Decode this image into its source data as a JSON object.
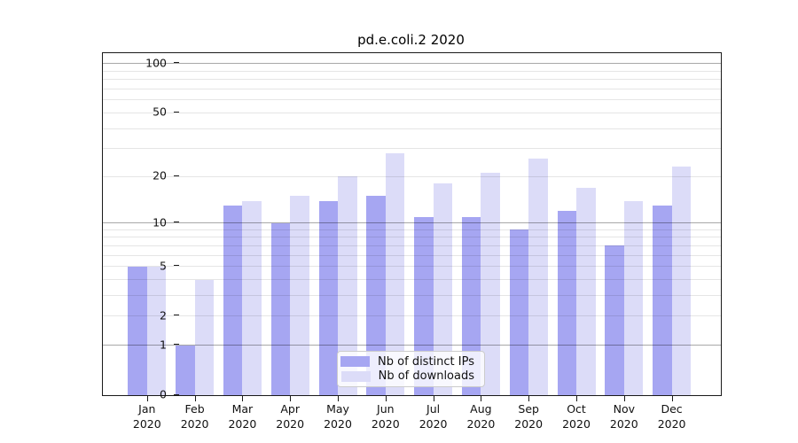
{
  "chart_data": {
    "type": "bar",
    "title": "pd.e.coli.2 2020",
    "categories": [
      "Jan 2020",
      "Feb 2020",
      "Mar 2020",
      "Apr 2020",
      "May 2020",
      "Jun 2020",
      "Jul 2020",
      "Aug 2020",
      "Sep 2020",
      "Oct 2020",
      "Nov 2020",
      "Dec 2020"
    ],
    "series": [
      {
        "name": "Nb of distinct IPs",
        "color": "#a6a6f2",
        "values": [
          5,
          1,
          13,
          10,
          14,
          15,
          11,
          11,
          9,
          12,
          7,
          13
        ]
      },
      {
        "name": "Nb of downloads",
        "color": "#dcdcf8",
        "values": [
          5,
          4,
          14,
          15,
          20,
          28,
          18,
          21,
          26,
          17,
          14,
          23
        ]
      }
    ],
    "xlabel": "",
    "ylabel": "",
    "yticks": [
      0,
      1,
      2,
      5,
      10,
      20,
      50,
      100
    ],
    "major_gridlines": [
      1,
      10,
      100
    ],
    "minor_gridlines": [
      2,
      3,
      4,
      5,
      6,
      7,
      8,
      9,
      20,
      30,
      40,
      50,
      60,
      70,
      80,
      90
    ],
    "ylim": [
      0,
      116
    ],
    "scale": "log1p",
    "grid": true,
    "legend_position": "bottom-center",
    "axis_color": "#1a1a1a"
  }
}
